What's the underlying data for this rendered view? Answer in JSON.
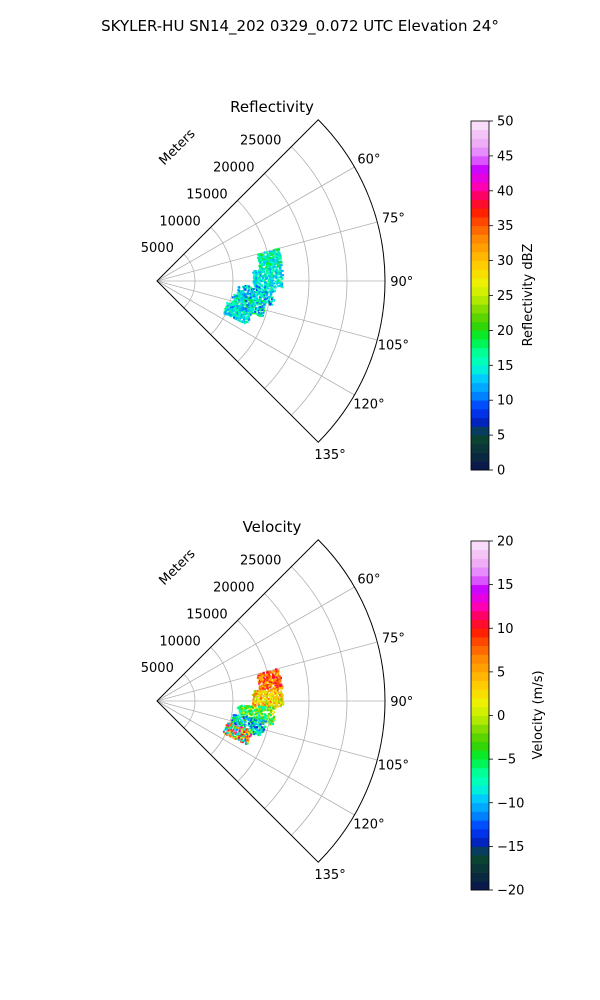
{
  "figure": {
    "title": "SKYLER-HU  SN14_202  0329_0.072 UTC Elevation 24°"
  },
  "chart_data": [
    {
      "type": "heatmap",
      "projection": "polar-sector",
      "title": "Reflectivity",
      "radial_label": "Meters",
      "radial_ticks": [
        5000,
        10000,
        15000,
        20000,
        25000
      ],
      "rlim": [
        0,
        30000
      ],
      "theta_range_deg": [
        45,
        135
      ],
      "theta_ticks": [
        60,
        75,
        90,
        105,
        120,
        135
      ],
      "theta_tick_labels": [
        "60°",
        "75°",
        "90°",
        "105°",
        "120°",
        "135°"
      ],
      "grid": true,
      "colorbar": {
        "label": "Reflectivity dBZ",
        "vmin": 0,
        "vmax": 50,
        "ticks": [
          0,
          5,
          10,
          15,
          20,
          25,
          30,
          35,
          40,
          45,
          50
        ],
        "tick_labels": [
          "0",
          "5",
          "10",
          "15",
          "20",
          "25",
          "30",
          "35",
          "40",
          "45",
          "50"
        ]
      },
      "echo_clusters": [
        {
          "azimuth_deg": 79,
          "range_m": [
            13500,
            16500
          ],
          "value_range": [
            12,
            20
          ]
        },
        {
          "azimuth_deg": 88,
          "range_m": [
            12500,
            16500
          ],
          "value_range": [
            11,
            18
          ]
        },
        {
          "azimuth_deg": 97,
          "range_m": [
            10500,
            15500
          ],
          "value_range": [
            8,
            18
          ]
        },
        {
          "azimuth_deg": 104,
          "range_m": [
            10000,
            14500
          ],
          "value_range": [
            9,
            20
          ]
        },
        {
          "azimuth_deg": 111,
          "range_m": [
            9500,
            13000
          ],
          "value_range": [
            10,
            18
          ]
        }
      ]
    },
    {
      "type": "heatmap",
      "projection": "polar-sector",
      "title": "Velocity",
      "radial_label": "Meters",
      "radial_ticks": [
        5000,
        10000,
        15000,
        20000,
        25000
      ],
      "rlim": [
        0,
        30000
      ],
      "theta_range_deg": [
        45,
        135
      ],
      "theta_ticks": [
        60,
        75,
        90,
        105,
        120,
        135
      ],
      "theta_tick_labels": [
        "60°",
        "75°",
        "90°",
        "105°",
        "120°",
        "135°"
      ],
      "grid": true,
      "colorbar": {
        "label": "Velocity (m/s)",
        "vmin": -20,
        "vmax": 20,
        "ticks": [
          -20,
          -15,
          -10,
          -5,
          0,
          5,
          10,
          15,
          20
        ],
        "tick_labels": [
          "−20",
          "−15",
          "−10",
          "−5",
          "0",
          "5",
          "10",
          "15",
          "20"
        ]
      },
      "echo_clusters": [
        {
          "azimuth_deg": 79,
          "range_m": [
            13500,
            16500
          ],
          "value_range": [
            3,
            12
          ]
        },
        {
          "azimuth_deg": 88,
          "range_m": [
            12500,
            16500
          ],
          "value_range": [
            -2,
            8
          ]
        },
        {
          "azimuth_deg": 97,
          "range_m": [
            10500,
            15500
          ],
          "value_range": [
            -9,
            2
          ]
        },
        {
          "azimuth_deg": 104,
          "range_m": [
            10000,
            14500
          ],
          "value_range": [
            -14,
            -3
          ]
        },
        {
          "azimuth_deg": 111,
          "range_m": [
            9500,
            13000
          ],
          "value_range": [
            -12,
            16
          ]
        }
      ]
    }
  ]
}
